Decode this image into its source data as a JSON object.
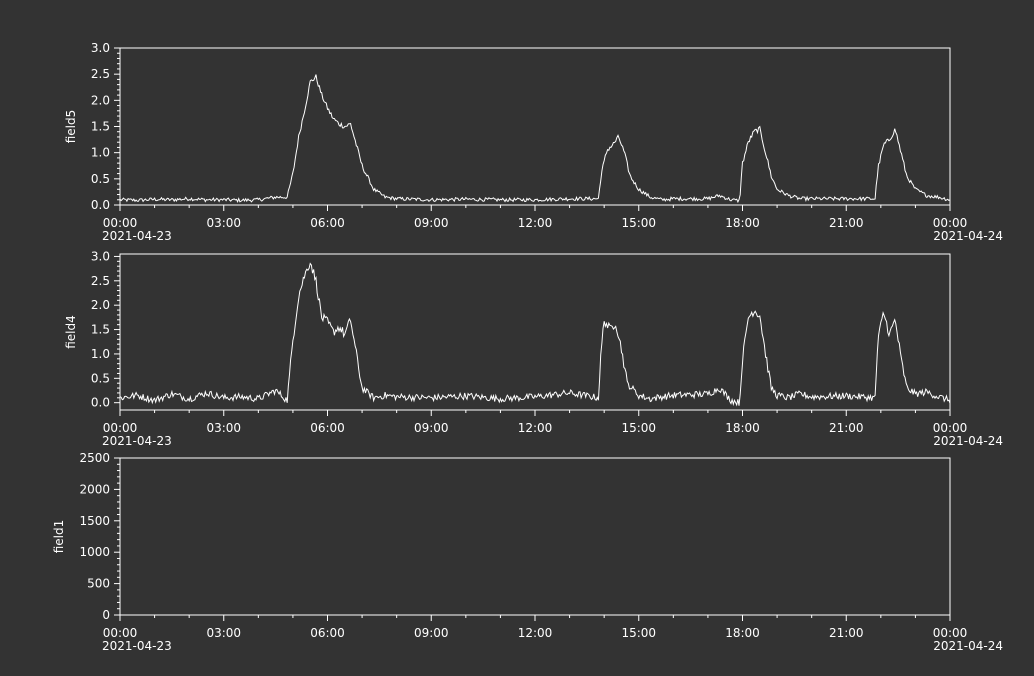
{
  "chart_data": [
    {
      "type": "line",
      "ylabel": "field5",
      "ylim": [
        0,
        3.0
      ],
      "y_ticks": [
        "0.0",
        "0.5",
        "1.0",
        "1.5",
        "2.0",
        "2.5",
        "3.0"
      ],
      "x_ticks": [
        "00:00",
        "03:00",
        "06:00",
        "09:00",
        "12:00",
        "15:00",
        "18:00",
        "21:00",
        "00:00"
      ],
      "x_date_labels": {
        "start": "2021-04-23",
        "end": "2021-04-24"
      },
      "xlim": [
        "2021-04-23 00:00",
        "2021-04-24 00:00"
      ],
      "grid": false,
      "series": [
        {
          "x": [
            "00:00",
            "00:30",
            "01:00",
            "01:30",
            "02:00",
            "02:30",
            "03:00",
            "03:30",
            "04:00",
            "04:30",
            "04:50",
            "05:00",
            "05:10",
            "05:20",
            "05:30",
            "05:40",
            "05:50",
            "06:00",
            "06:10",
            "06:20",
            "06:30",
            "06:40",
            "07:00",
            "07:20",
            "07:40",
            "08:00",
            "09:00",
            "10:00",
            "11:00",
            "12:00",
            "13:00",
            "13:50",
            "13:55",
            "14:05",
            "14:15",
            "14:25",
            "14:35",
            "14:45",
            "15:00",
            "15:20",
            "15:40",
            "16:00",
            "17:00",
            "17:20",
            "17:40",
            "17:55",
            "18:00",
            "18:10",
            "18:20",
            "18:30",
            "18:40",
            "18:50",
            "19:00",
            "19:20",
            "19:40",
            "20:00",
            "21:00",
            "21:50",
            "21:55",
            "22:05",
            "22:15",
            "22:25",
            "22:35",
            "22:45",
            "23:00",
            "23:20",
            "23:40",
            "24:00"
          ],
          "y": [
            0.1,
            0.09,
            0.11,
            0.1,
            0.12,
            0.1,
            0.1,
            0.09,
            0.1,
            0.15,
            0.15,
            0.6,
            1.3,
            1.8,
            2.35,
            2.45,
            2.1,
            1.85,
            1.65,
            1.55,
            1.5,
            1.55,
            0.75,
            0.3,
            0.15,
            0.12,
            0.1,
            0.11,
            0.1,
            0.1,
            0.12,
            0.12,
            0.6,
            1.05,
            1.15,
            1.3,
            1.0,
            0.55,
            0.3,
            0.15,
            0.1,
            0.12,
            0.12,
            0.18,
            0.1,
            0.08,
            0.8,
            1.2,
            1.4,
            1.45,
            1.0,
            0.55,
            0.3,
            0.18,
            0.12,
            0.12,
            0.12,
            0.12,
            0.7,
            1.15,
            1.25,
            1.45,
            1.0,
            0.55,
            0.3,
            0.18,
            0.15,
            0.1
          ]
        }
      ]
    },
    {
      "type": "line",
      "ylabel": "field4",
      "ylim": [
        -0.15,
        3.05
      ],
      "y_ticks": [
        "0.0",
        "0.5",
        "1.0",
        "1.5",
        "2.0",
        "2.5",
        "3.0"
      ],
      "x_ticks": [
        "00:00",
        "03:00",
        "06:00",
        "09:00",
        "12:00",
        "15:00",
        "18:00",
        "21:00",
        "00:00"
      ],
      "x_date_labels": {
        "start": "2021-04-23",
        "end": "2021-04-24"
      },
      "xlim": [
        "2021-04-23 00:00",
        "2021-04-24 00:00"
      ],
      "grid": false,
      "series": [
        {
          "x": [
            "00:00",
            "00:30",
            "01:00",
            "01:30",
            "02:00",
            "02:30",
            "03:00",
            "03:30",
            "04:00",
            "04:30",
            "04:50",
            "05:00",
            "05:10",
            "05:20",
            "05:30",
            "05:40",
            "05:50",
            "06:00",
            "06:10",
            "06:20",
            "06:30",
            "06:40",
            "07:00",
            "07:20",
            "07:40",
            "08:00",
            "09:00",
            "10:00",
            "11:00",
            "12:00",
            "13:00",
            "13:50",
            "13:55",
            "14:00",
            "14:10",
            "14:20",
            "14:30",
            "14:40",
            "15:00",
            "15:20",
            "15:40",
            "16:00",
            "17:00",
            "17:20",
            "17:40",
            "17:55",
            "18:00",
            "18:10",
            "18:20",
            "18:30",
            "18:40",
            "18:50",
            "19:00",
            "19:20",
            "19:40",
            "20:00",
            "21:00",
            "21:50",
            "21:55",
            "22:05",
            "22:15",
            "22:25",
            "22:35",
            "22:45",
            "23:00",
            "23:20",
            "23:40",
            "24:00"
          ],
          "y": [
            0.1,
            0.15,
            0.05,
            0.18,
            0.08,
            0.2,
            0.1,
            0.12,
            0.08,
            0.25,
            0.05,
            1.3,
            2.2,
            2.6,
            2.9,
            2.5,
            1.75,
            1.65,
            1.45,
            1.55,
            1.4,
            1.7,
            0.3,
            0.1,
            0.15,
            0.12,
            0.1,
            0.14,
            0.08,
            0.12,
            0.2,
            0.1,
            1.1,
            1.7,
            1.5,
            1.65,
            1.1,
            0.4,
            0.15,
            0.08,
            0.12,
            0.15,
            0.18,
            0.3,
            0.05,
            0.0,
            0.9,
            1.75,
            1.9,
            1.8,
            1.0,
            0.3,
            0.15,
            0.1,
            0.18,
            0.12,
            0.14,
            0.1,
            1.3,
            1.85,
            1.4,
            1.7,
            0.9,
            0.3,
            0.18,
            0.22,
            0.12,
            0.05
          ]
        }
      ]
    },
    {
      "type": "line",
      "ylabel": "field1",
      "ylim": [
        0,
        2500
      ],
      "y_ticks": [
        "0",
        "500",
        "1000",
        "1500",
        "2000",
        "2500"
      ],
      "x_ticks": [
        "00:00",
        "03:00",
        "06:00",
        "09:00",
        "12:00",
        "15:00",
        "18:00",
        "21:00",
        "00:00"
      ],
      "x_date_labels": {
        "start": "2021-04-23",
        "end": "2021-04-24"
      },
      "xlim": [
        "2021-04-23 00:00",
        "2021-04-24 00:00"
      ],
      "grid": false,
      "series": []
    }
  ],
  "colors": {
    "background": "#333333",
    "foreground": "#ffffff"
  }
}
